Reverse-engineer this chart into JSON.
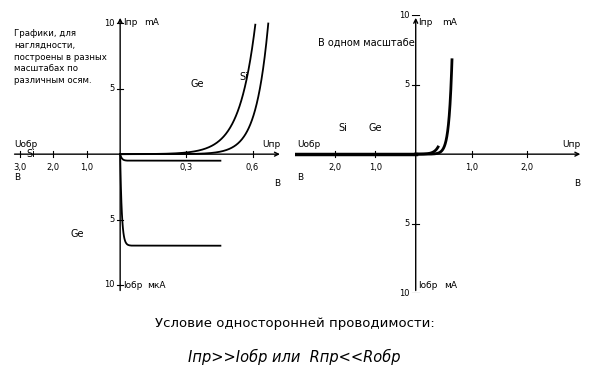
{
  "bg_color": "#ffffff",
  "title_text": "Условие односторонней проводимости:",
  "formula_text": "Iпр>>Iобр или  Rпр<<Rобр",
  "left_note": "Графики, для\nнаглядности,\nпостроены в разных\nмасштабах по\nразличным осям.",
  "right_note": "В одном масштабе"
}
